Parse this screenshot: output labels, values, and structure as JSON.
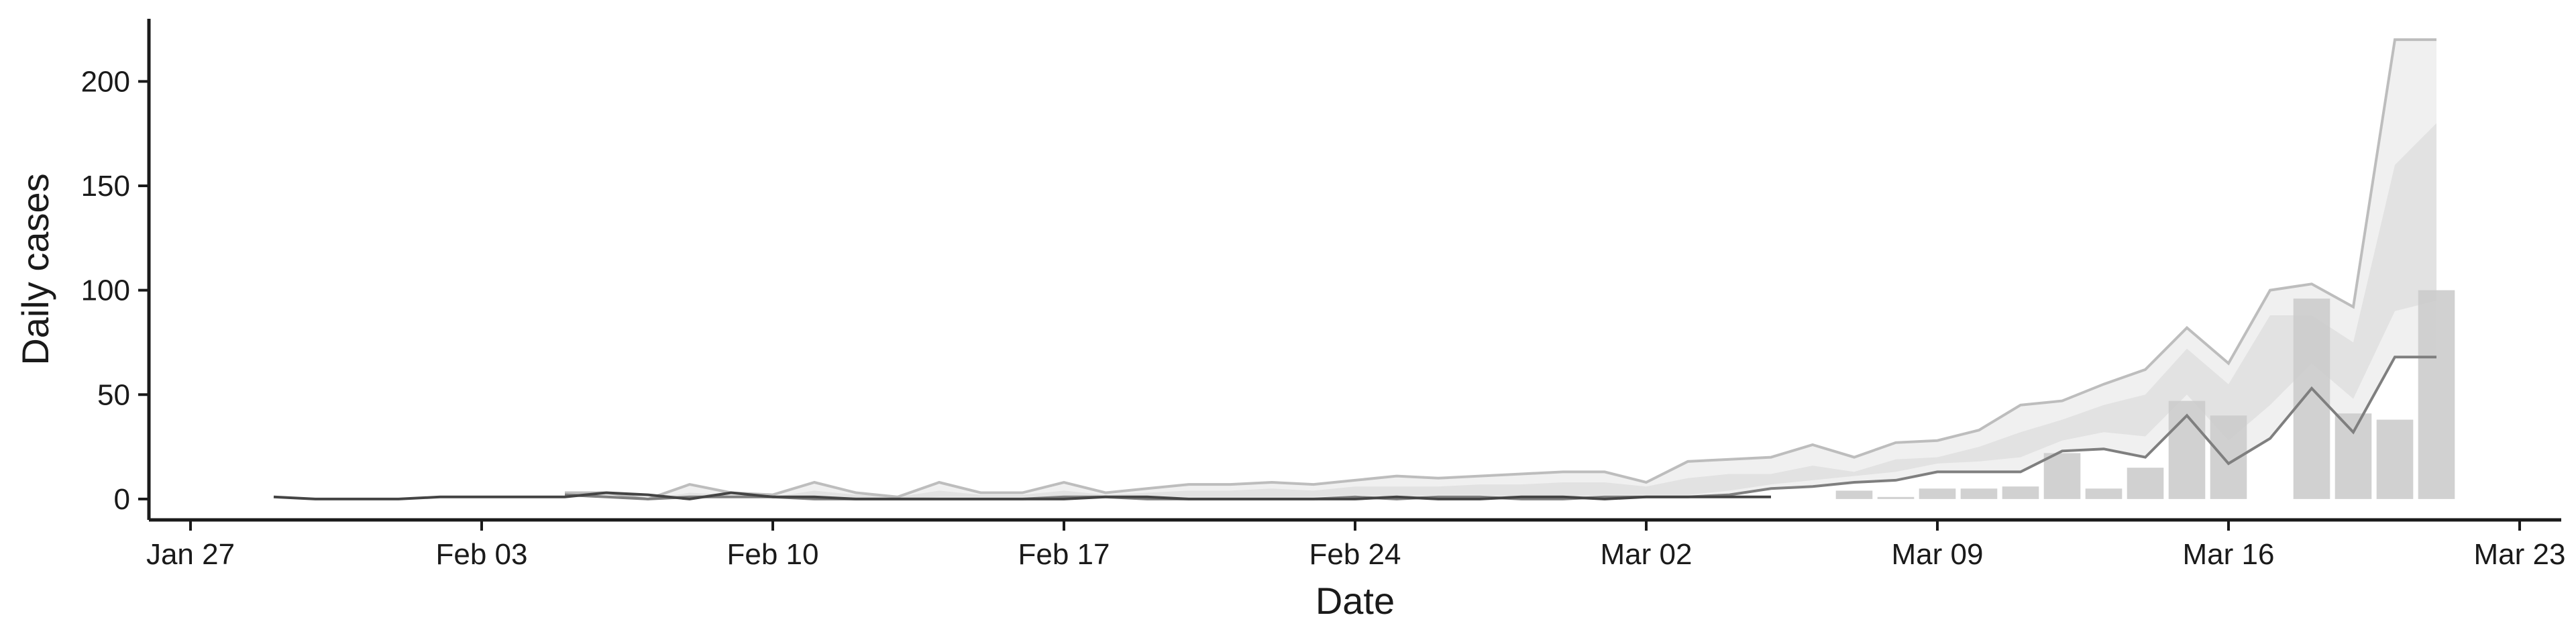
{
  "chart_data": {
    "type": "bar",
    "xlabel": "Date",
    "ylabel": "Daily cases",
    "x_axis": {
      "type": "date",
      "range": [
        "2020-01-26",
        "2020-03-24"
      ],
      "ticks": [
        {
          "date": "2020-01-27",
          "label": "Jan 27"
        },
        {
          "date": "2020-02-03",
          "label": "Feb 03"
        },
        {
          "date": "2020-02-10",
          "label": "Feb 10"
        },
        {
          "date": "2020-02-17",
          "label": "Feb 17"
        },
        {
          "date": "2020-02-24",
          "label": "Feb 24"
        },
        {
          "date": "2020-03-02",
          "label": "Mar 02"
        },
        {
          "date": "2020-03-09",
          "label": "Mar 09"
        },
        {
          "date": "2020-03-16",
          "label": "Mar 16"
        },
        {
          "date": "2020-03-23",
          "label": "Mar 23"
        }
      ]
    },
    "y_axis": {
      "range": [
        -10,
        230
      ],
      "ticks": [
        0,
        50,
        100,
        150,
        200
      ]
    },
    "grid": false,
    "colors": {
      "bars": "#cccccc",
      "band_outer": "#f0f0f0",
      "band_inner": "#e2e2e2",
      "line_upper": "#bdbdbd",
      "line_lower": "#7f7f7f",
      "line_early": "#444444",
      "axis": "#1a1a1a"
    },
    "bars": {
      "dates": [
        "2020-03-07",
        "2020-03-08",
        "2020-03-09",
        "2020-03-10",
        "2020-03-11",
        "2020-03-12",
        "2020-03-13",
        "2020-03-14",
        "2020-03-15",
        "2020-03-16",
        "2020-03-18",
        "2020-03-19",
        "2020-03-20",
        "2020-03-21"
      ],
      "values": [
        4,
        1,
        5,
        5,
        6,
        22,
        5,
        15,
        47,
        40,
        96,
        41,
        38,
        100
      ]
    },
    "early_line": {
      "dates": [
        "2020-01-29",
        "2020-01-30",
        "2020-01-31",
        "2020-02-01",
        "2020-02-02",
        "2020-02-03",
        "2020-02-04",
        "2020-02-05",
        "2020-02-06",
        "2020-02-07",
        "2020-02-08",
        "2020-02-09",
        "2020-02-10",
        "2020-02-11",
        "2020-02-12",
        "2020-02-13",
        "2020-02-14",
        "2020-02-15",
        "2020-02-16",
        "2020-02-17",
        "2020-02-18",
        "2020-02-19",
        "2020-02-20",
        "2020-02-21",
        "2020-02-22",
        "2020-02-23",
        "2020-02-24",
        "2020-02-25",
        "2020-02-26",
        "2020-02-27",
        "2020-02-28",
        "2020-02-29",
        "2020-03-01",
        "2020-03-02",
        "2020-03-03",
        "2020-03-04",
        "2020-03-05"
      ],
      "values": [
        1,
        0,
        0,
        0,
        1,
        1,
        1,
        1,
        3,
        2,
        0,
        3,
        1,
        1,
        0,
        0,
        0,
        0,
        0,
        0,
        1,
        1,
        0,
        0,
        0,
        0,
        0,
        1,
        0,
        0,
        1,
        1,
        0,
        1,
        1,
        1,
        1
      ]
    },
    "projection": {
      "dates": [
        "2020-02-05",
        "2020-02-06",
        "2020-02-07",
        "2020-02-08",
        "2020-02-09",
        "2020-02-10",
        "2020-02-11",
        "2020-02-12",
        "2020-02-13",
        "2020-02-14",
        "2020-02-15",
        "2020-02-16",
        "2020-02-17",
        "2020-02-18",
        "2020-02-19",
        "2020-02-20",
        "2020-02-21",
        "2020-02-22",
        "2020-02-23",
        "2020-02-24",
        "2020-02-25",
        "2020-02-26",
        "2020-02-27",
        "2020-02-28",
        "2020-02-29",
        "2020-03-01",
        "2020-03-02",
        "2020-03-03",
        "2020-03-04",
        "2020-03-05",
        "2020-03-06",
        "2020-03-07",
        "2020-03-08",
        "2020-03-09",
        "2020-03-10",
        "2020-03-11",
        "2020-03-12",
        "2020-03-13",
        "2020-03-14",
        "2020-03-15",
        "2020-03-16",
        "2020-03-17",
        "2020-03-18",
        "2020-03-19",
        "2020-03-20",
        "2020-03-21"
      ],
      "upper": [
        3,
        3,
        0,
        7,
        3,
        2,
        8,
        3,
        1,
        8,
        3,
        3,
        8,
        3,
        5,
        7,
        7,
        8,
        7,
        9,
        11,
        10,
        11,
        12,
        13,
        13,
        8,
        18,
        19,
        20,
        26,
        20,
        27,
        28,
        33,
        45,
        47,
        55,
        62,
        82,
        65,
        100,
        103,
        92,
        220,
        220
      ],
      "lower": [
        2,
        1,
        0,
        1,
        1,
        1,
        0,
        0,
        0,
        0,
        0,
        0,
        1,
        1,
        0,
        0,
        0,
        0,
        0,
        1,
        0,
        1,
        1,
        0,
        0,
        1,
        1,
        1,
        2,
        5,
        6,
        8,
        9,
        13,
        13,
        13,
        23,
        24,
        20,
        40,
        17,
        29,
        53,
        32,
        68,
        68
      ],
      "inner_upper": [
        2,
        2,
        0,
        3,
        2,
        1,
        4,
        2,
        1,
        4,
        2,
        2,
        4,
        2,
        3,
        4,
        4,
        5,
        4,
        6,
        6,
        6,
        7,
        7,
        8,
        8,
        6,
        10,
        12,
        12,
        16,
        13,
        19,
        20,
        25,
        32,
        38,
        45,
        50,
        72,
        55,
        88,
        88,
        75,
        160,
        180
      ],
      "inner_lower": [
        2,
        1,
        0,
        1,
        1,
        1,
        1,
        0,
        0,
        1,
        1,
        1,
        1,
        1,
        1,
        1,
        1,
        1,
        1,
        2,
        1,
        2,
        2,
        1,
        1,
        2,
        2,
        2,
        4,
        7,
        9,
        11,
        13,
        17,
        18,
        20,
        28,
        32,
        30,
        50,
        28,
        45,
        65,
        48,
        90,
        95
      ]
    }
  }
}
